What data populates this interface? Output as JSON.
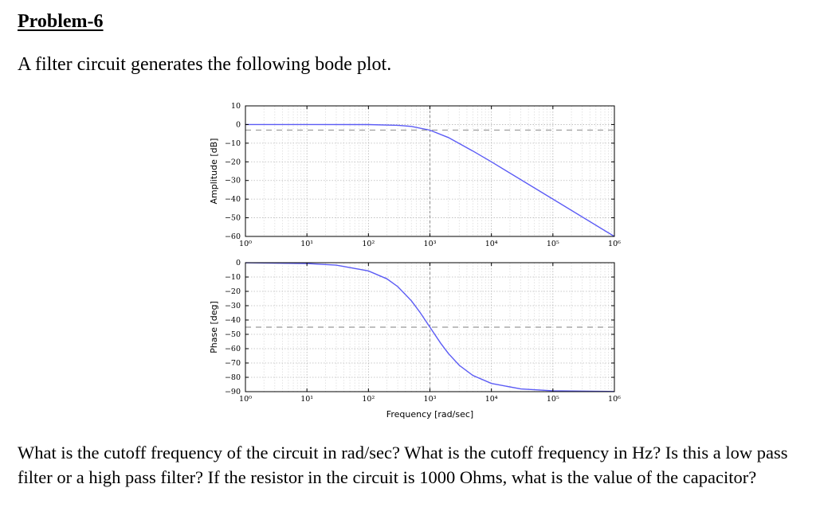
{
  "document": {
    "title": "Problem-6",
    "intro": "A filter circuit generates the following bode plot.",
    "question": "What is the cutoff frequency of the circuit in rad/sec? What is the cutoff frequency in Hz? Is this a low pass filter or a high pass filter? If the resistor in the circuit is 1000 Ohms, what is the value of the capacitor?"
  },
  "chart_data": [
    {
      "type": "line",
      "ylabel": "Amplitude [dB]",
      "xlabel": "",
      "xscale": "log",
      "xlim": [
        1,
        1000000
      ],
      "ylim": [
        -60,
        10
      ],
      "x_ticks": [
        "10⁰",
        "10¹",
        "10²",
        "10³",
        "10⁴",
        "10⁵",
        "10⁶"
      ],
      "y_ticks": [
        "10",
        "0",
        "−10",
        "−20",
        "−30",
        "−40",
        "−50",
        "−60"
      ],
      "grid": true,
      "reference_line": {
        "y": -3,
        "style": "dashed"
      },
      "series": [
        {
          "x": [
            1,
            10,
            100,
            300,
            500,
            1000,
            2000,
            5000,
            10000,
            100000,
            1000000
          ],
          "y": [
            0,
            0,
            -0.04,
            -0.4,
            -1.0,
            -3.0,
            -7.0,
            -14.2,
            -20.0,
            -40.0,
            -60.0
          ],
          "color": "#5b5bf5"
        }
      ],
      "cutoff_marker": {
        "x": 1000,
        "style": "dashed"
      }
    },
    {
      "type": "line",
      "ylabel": "Phase [deg]",
      "xlabel": "Frequency [rad/sec]",
      "xscale": "log",
      "xlim": [
        1,
        1000000
      ],
      "ylim": [
        -90,
        0
      ],
      "x_ticks": [
        "10⁰",
        "10¹",
        "10²",
        "10³",
        "10⁴",
        "10⁵",
        "10⁶"
      ],
      "y_ticks": [
        "0",
        "−10",
        "−20",
        "−30",
        "−40",
        "−50",
        "−60",
        "−70",
        "−80",
        "−90"
      ],
      "grid": true,
      "reference_line": {
        "y": -45,
        "style": "dashed"
      },
      "series": [
        {
          "x": [
            1,
            10,
            30,
            100,
            200,
            300,
            500,
            700,
            1000,
            1500,
            2000,
            3000,
            5000,
            10000,
            30000,
            100000,
            1000000
          ],
          "y": [
            -0.06,
            -0.6,
            -1.7,
            -5.7,
            -11.3,
            -16.7,
            -26.6,
            -35.0,
            -45.0,
            -56.3,
            -63.4,
            -71.6,
            -78.7,
            -84.3,
            -88.1,
            -89.4,
            -89.9
          ],
          "color": "#5b5bf5"
        }
      ],
      "cutoff_marker": {
        "x": 1000,
        "style": "dashed"
      }
    }
  ]
}
